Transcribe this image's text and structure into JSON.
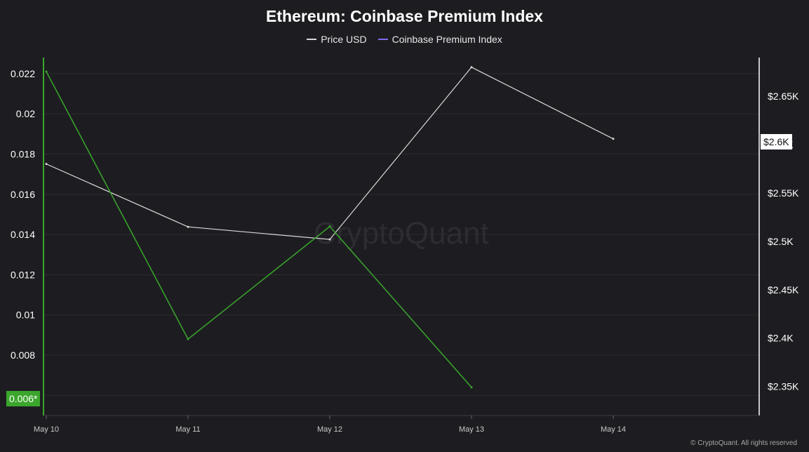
{
  "title": "Ethereum: Coinbase Premium Index",
  "legend": [
    {
      "label": "Price USD",
      "color": "#d9d9d9"
    },
    {
      "label": "Coinbase Premium Index",
      "color": "#7b6cf0"
    }
  ],
  "watermark": "CryptoQuant",
  "footer": "© CryptoQuant. All rights reserved",
  "badges": {
    "left": "0.006*",
    "right": "$2.6K"
  },
  "colors": {
    "background": "#1d1d21",
    "price_line": "#d9d9d9",
    "premium_line": "#3aa62c",
    "premium_axis": "#3aa62c"
  },
  "chart_data": {
    "type": "line",
    "title": "Ethereum: Coinbase Premium Index",
    "x": [
      "May 10",
      "May 11",
      "May 12",
      "May 13",
      "May 14"
    ],
    "series": [
      {
        "name": "Price USD",
        "axis": "right",
        "values": [
          2580,
          2515,
          2502,
          2680,
          2606
        ]
      },
      {
        "name": "Coinbase Premium Index",
        "axis": "left",
        "values": [
          0.0221,
          0.0088,
          0.0144,
          0.0064,
          null
        ]
      }
    ],
    "left_axis": {
      "ticks": [
        "0.022",
        "0.02",
        "0.018",
        "0.016",
        "0.014",
        "0.012",
        "0.01",
        "0.008",
        "0.006"
      ],
      "ylim": [
        0.005,
        0.0228
      ]
    },
    "right_axis": {
      "ticks": [
        "$2.65K",
        "$2.6K",
        "$2.55K",
        "$2.5K",
        "$2.45K",
        "$2.4K",
        "$2.35K"
      ],
      "ylim": [
        2320,
        2690
      ]
    },
    "grid": true,
    "legend_position": "top-center"
  }
}
